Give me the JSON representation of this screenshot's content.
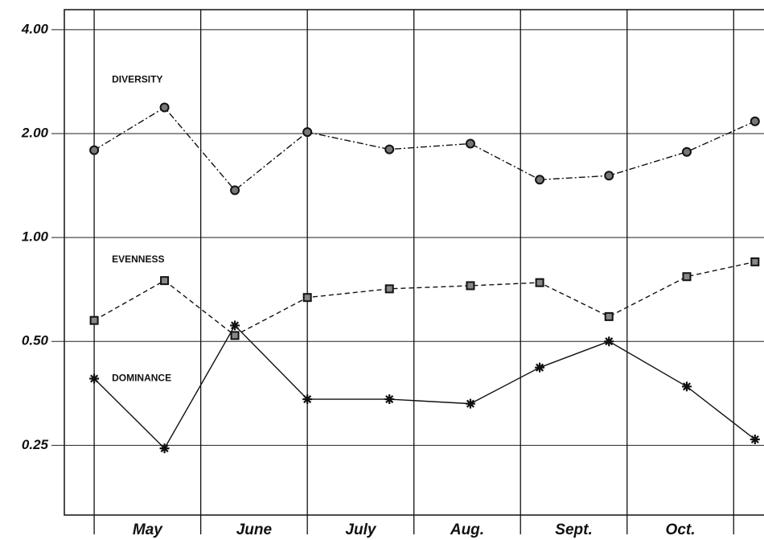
{
  "chart_data": {
    "type": "line",
    "categories": [
      "May",
      "June",
      "July",
      "Aug.",
      "Sept.",
      "Oct."
    ],
    "xlim": [
      -0.28,
      6.36
    ],
    "ylim": [
      0.157,
      4.57
    ],
    "log_y": true,
    "grid": true,
    "yticks": [
      {
        "value": 0.25,
        "label": "0.25"
      },
      {
        "value": 0.5,
        "label": "0.50"
      },
      {
        "value": 1,
        "label": "1.00"
      },
      {
        "value": 2,
        "label": "2.00"
      },
      {
        "value": 4,
        "label": "4.00"
      }
    ],
    "series": [
      {
        "name": "DIVERSITY",
        "color": "#111111",
        "marker": "circle",
        "dash": "dashdot",
        "x": [
          0,
          0.66,
          1.32,
          2,
          2.77,
          3.53,
          4.18,
          4.83,
          5.56,
          6.2
        ],
        "values": [
          1.79,
          2.38,
          1.37,
          2.02,
          1.8,
          1.87,
          1.47,
          1.51,
          1.77,
          2.17
        ]
      },
      {
        "name": "EVENNESS",
        "color": "#111111",
        "marker": "square",
        "dash": "dashed",
        "x": [
          0,
          0.66,
          1.32,
          2,
          2.77,
          3.53,
          4.18,
          4.83,
          5.56,
          6.2
        ],
        "values": [
          0.575,
          0.75,
          0.52,
          0.67,
          0.71,
          0.725,
          0.74,
          0.59,
          0.77,
          0.85
        ]
      },
      {
        "name": "DOMINANCE",
        "color": "#111111",
        "marker": "star",
        "dash": "solid",
        "x": [
          0,
          0.66,
          1.32,
          2,
          2.77,
          3.53,
          4.18,
          4.83,
          5.56,
          6.2
        ],
        "values": [
          0.39,
          0.245,
          0.556,
          0.34,
          0.34,
          0.33,
          0.42,
          0.5,
          0.37,
          0.26
        ]
      }
    ]
  }
}
